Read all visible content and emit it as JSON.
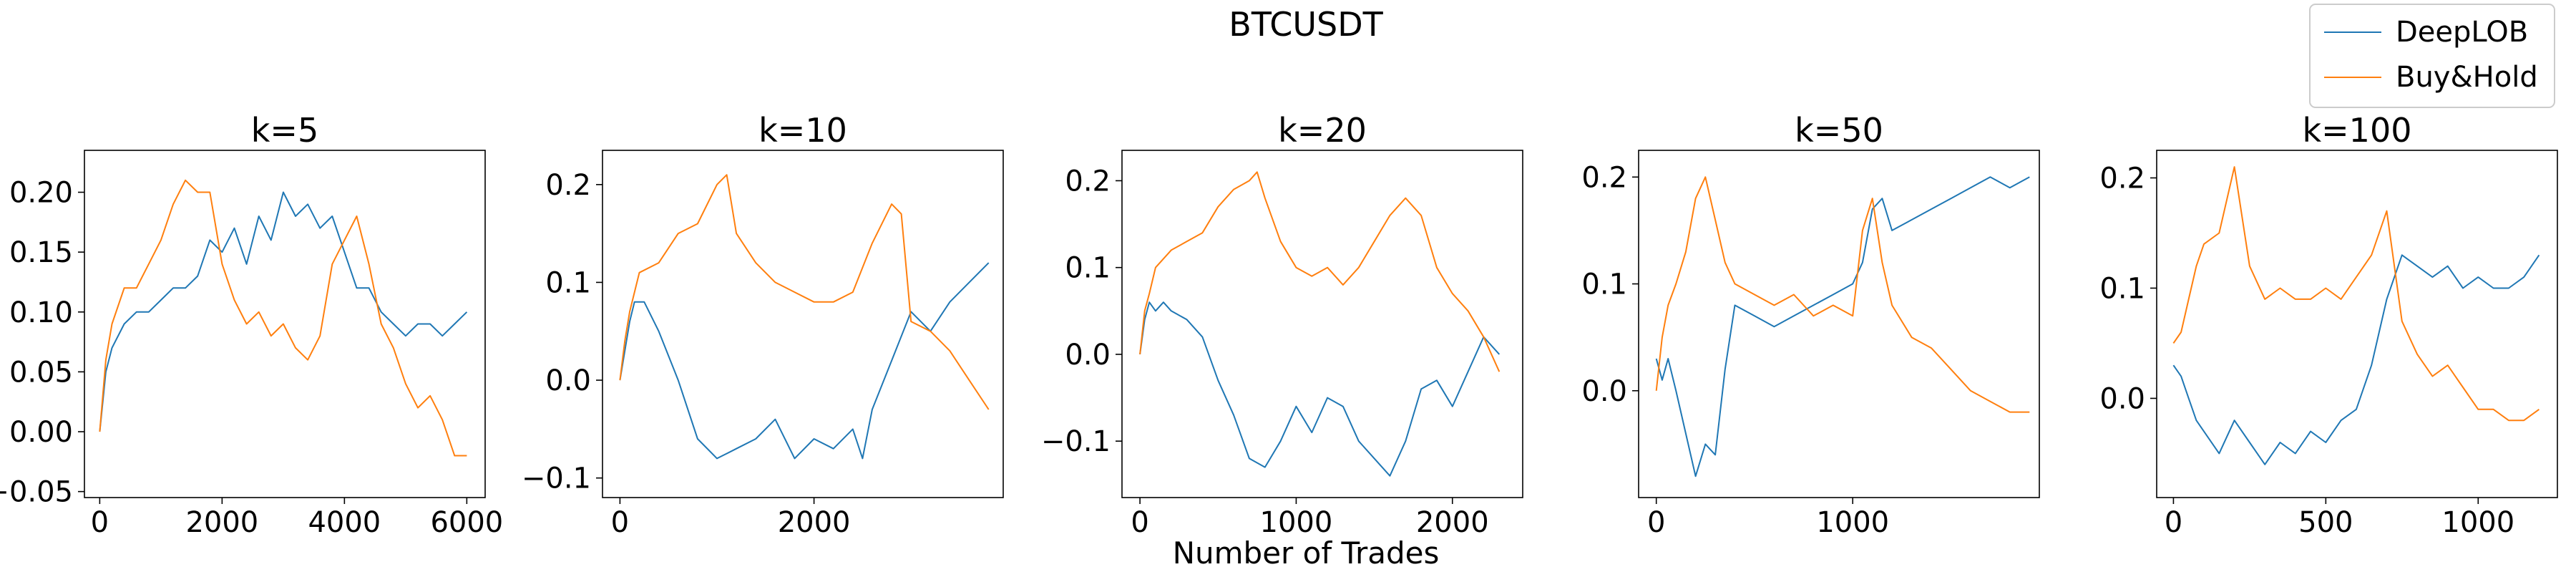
{
  "figure": {
    "title": "BTCUSDT",
    "xlabel": "Number of Trades"
  },
  "legend": {
    "placement": "top-right",
    "items": [
      {
        "label": "DeepLOB",
        "color": "#1f77b4"
      },
      {
        "label": "Buy&Hold",
        "color": "#ff7f0e"
      }
    ]
  },
  "chart_data": [
    {
      "type": "line",
      "title": "k=5",
      "xlim": [
        -250,
        6300
      ],
      "ylim": [
        -0.055,
        0.235
      ],
      "xticks": [
        0,
        2000,
        4000,
        6000
      ],
      "xtick_labels": [
        "0",
        "2000",
        "4000",
        "6000"
      ],
      "yticks": [
        -0.05,
        0.0,
        0.05,
        0.1,
        0.15,
        0.2
      ],
      "ytick_labels": [
        "−0.05",
        "0.00",
        "0.05",
        "0.10",
        "0.15",
        "0.20"
      ],
      "series": [
        {
          "name": "DeepLOB",
          "color": "#1f77b4",
          "x": [
            0,
            100,
            200,
            400,
            600,
            800,
            1000,
            1200,
            1400,
            1600,
            1800,
            2000,
            2200,
            2400,
            2600,
            2800,
            3000,
            3200,
            3400,
            3600,
            3800,
            4000,
            4200,
            4400,
            4600,
            4800,
            5000,
            5200,
            5400,
            5600,
            5800,
            6000
          ],
          "y": [
            0.0,
            0.05,
            0.07,
            0.09,
            0.1,
            0.1,
            0.11,
            0.12,
            0.12,
            0.13,
            0.16,
            0.15,
            0.17,
            0.14,
            0.18,
            0.16,
            0.2,
            0.18,
            0.19,
            0.17,
            0.18,
            0.15,
            0.12,
            0.12,
            0.1,
            0.09,
            0.08,
            0.09,
            0.09,
            0.08,
            0.09,
            0.1
          ]
        },
        {
          "name": "Buy&Hold",
          "color": "#ff7f0e",
          "x": [
            0,
            100,
            200,
            400,
            600,
            800,
            1000,
            1200,
            1400,
            1600,
            1800,
            2000,
            2200,
            2400,
            2600,
            2800,
            3000,
            3200,
            3400,
            3600,
            3800,
            4000,
            4200,
            4400,
            4600,
            4800,
            5000,
            5200,
            5400,
            5600,
            5800,
            6000
          ],
          "y": [
            0.0,
            0.06,
            0.09,
            0.12,
            0.12,
            0.14,
            0.16,
            0.19,
            0.21,
            0.2,
            0.2,
            0.14,
            0.11,
            0.09,
            0.1,
            0.08,
            0.09,
            0.07,
            0.06,
            0.08,
            0.14,
            0.16,
            0.18,
            0.14,
            0.09,
            0.07,
            0.04,
            0.02,
            0.03,
            0.01,
            -0.02,
            -0.02
          ]
        }
      ]
    },
    {
      "type": "line",
      "title": "k=10",
      "xlim": [
        -180,
        3950
      ],
      "ylim": [
        -0.12,
        0.235
      ],
      "xticks": [
        0,
        2000
      ],
      "xtick_labels": [
        "0",
        "2000"
      ],
      "yticks": [
        -0.1,
        0.0,
        0.1,
        0.2
      ],
      "ytick_labels": [
        "−0.1",
        "0.0",
        "0.1",
        "0.2"
      ],
      "series": [
        {
          "name": "DeepLOB",
          "color": "#1f77b4",
          "x": [
            0,
            50,
            100,
            150,
            250,
            400,
            600,
            800,
            1000,
            1200,
            1400,
            1600,
            1800,
            2000,
            2200,
            2400,
            2500,
            2600,
            2800,
            3000,
            3200,
            3400,
            3600,
            3800
          ],
          "y": [
            0.0,
            0.03,
            0.06,
            0.08,
            0.08,
            0.05,
            0.0,
            -0.06,
            -0.08,
            -0.07,
            -0.06,
            -0.04,
            -0.08,
            -0.06,
            -0.07,
            -0.05,
            -0.08,
            -0.03,
            0.02,
            0.07,
            0.05,
            0.08,
            0.1,
            0.12
          ]
        },
        {
          "name": "Buy&Hold",
          "color": "#ff7f0e",
          "x": [
            0,
            50,
            100,
            200,
            400,
            600,
            800,
            1000,
            1100,
            1200,
            1400,
            1600,
            1800,
            2000,
            2200,
            2400,
            2600,
            2800,
            2900,
            3000,
            3200,
            3400,
            3600,
            3800
          ],
          "y": [
            0.0,
            0.04,
            0.07,
            0.11,
            0.12,
            0.15,
            0.16,
            0.2,
            0.21,
            0.15,
            0.12,
            0.1,
            0.09,
            0.08,
            0.08,
            0.09,
            0.14,
            0.18,
            0.17,
            0.06,
            0.05,
            0.03,
            0.0,
            -0.03
          ]
        }
      ]
    },
    {
      "type": "line",
      "title": "k=20",
      "xlim": [
        -115,
        2450
      ],
      "ylim": [
        -0.165,
        0.235
      ],
      "xticks": [
        0,
        1000,
        2000
      ],
      "xtick_labels": [
        "0",
        "1000",
        "2000"
      ],
      "yticks": [
        -0.1,
        0.0,
        0.1,
        0.2
      ],
      "ytick_labels": [
        "−0.1",
        "0.0",
        "0.1",
        "0.2"
      ],
      "series": [
        {
          "name": "DeepLOB",
          "color": "#1f77b4",
          "x": [
            0,
            30,
            60,
            100,
            150,
            200,
            300,
            400,
            500,
            600,
            700,
            800,
            900,
            1000,
            1100,
            1200,
            1300,
            1400,
            1500,
            1600,
            1700,
            1800,
            1900,
            2000,
            2100,
            2200,
            2300
          ],
          "y": [
            0.0,
            0.04,
            0.06,
            0.05,
            0.06,
            0.05,
            0.04,
            0.02,
            -0.03,
            -0.07,
            -0.12,
            -0.13,
            -0.1,
            -0.06,
            -0.09,
            -0.05,
            -0.06,
            -0.1,
            -0.12,
            -0.14,
            -0.1,
            -0.04,
            -0.03,
            -0.06,
            -0.02,
            0.02,
            0.0
          ]
        },
        {
          "name": "Buy&Hold",
          "color": "#ff7f0e",
          "x": [
            0,
            30,
            60,
            100,
            200,
            300,
            400,
            500,
            600,
            700,
            750,
            800,
            900,
            1000,
            1100,
            1200,
            1300,
            1400,
            1500,
            1600,
            1700,
            1800,
            1900,
            2000,
            2100,
            2200,
            2300
          ],
          "y": [
            0.0,
            0.05,
            0.07,
            0.1,
            0.12,
            0.13,
            0.14,
            0.17,
            0.19,
            0.2,
            0.21,
            0.18,
            0.13,
            0.1,
            0.09,
            0.1,
            0.08,
            0.1,
            0.13,
            0.16,
            0.18,
            0.16,
            0.1,
            0.07,
            0.05,
            0.02,
            -0.02
          ]
        }
      ]
    },
    {
      "type": "line",
      "title": "k=50",
      "xlim": [
        -90,
        1950
      ],
      "ylim": [
        -0.1,
        0.225
      ],
      "xticks": [
        0,
        1000
      ],
      "xtick_labels": [
        "0",
        "1000"
      ],
      "yticks": [
        0.0,
        0.1,
        0.2
      ],
      "ytick_labels": [
        "0.0",
        "0.1",
        "0.2"
      ],
      "series": [
        {
          "name": "DeepLOB",
          "color": "#1f77b4",
          "x": [
            0,
            30,
            60,
            100,
            150,
            200,
            250,
            300,
            350,
            400,
            500,
            600,
            700,
            800,
            900,
            1000,
            1050,
            1100,
            1150,
            1200,
            1300,
            1400,
            1500,
            1600,
            1700,
            1800,
            1900
          ],
          "y": [
            0.03,
            0.01,
            0.03,
            0.0,
            -0.04,
            -0.08,
            -0.05,
            -0.06,
            0.02,
            0.08,
            0.07,
            0.06,
            0.07,
            0.08,
            0.09,
            0.1,
            0.12,
            0.17,
            0.18,
            0.15,
            0.16,
            0.17,
            0.18,
            0.19,
            0.2,
            0.19,
            0.2
          ]
        },
        {
          "name": "Buy&Hold",
          "color": "#ff7f0e",
          "x": [
            0,
            30,
            60,
            100,
            150,
            200,
            250,
            300,
            350,
            400,
            500,
            600,
            700,
            800,
            900,
            1000,
            1050,
            1100,
            1150,
            1200,
            1300,
            1400,
            1500,
            1600,
            1700,
            1800,
            1900
          ],
          "y": [
            0.0,
            0.05,
            0.08,
            0.1,
            0.13,
            0.18,
            0.2,
            0.16,
            0.12,
            0.1,
            0.09,
            0.08,
            0.09,
            0.07,
            0.08,
            0.07,
            0.15,
            0.18,
            0.12,
            0.08,
            0.05,
            0.04,
            0.02,
            0.0,
            -0.01,
            -0.02,
            -0.02
          ]
        }
      ]
    },
    {
      "type": "line",
      "title": "k=100",
      "xlim": [
        -55,
        1260
      ],
      "ylim": [
        -0.09,
        0.225
      ],
      "xticks": [
        0,
        500,
        1000
      ],
      "xtick_labels": [
        "0",
        "500",
        "1000"
      ],
      "yticks": [
        0.0,
        0.1,
        0.2
      ],
      "ytick_labels": [
        "0.0",
        "0.1",
        "0.2"
      ],
      "series": [
        {
          "name": "DeepLOB",
          "color": "#1f77b4",
          "x": [
            0,
            25,
            50,
            75,
            100,
            150,
            200,
            250,
            300,
            350,
            400,
            450,
            500,
            550,
            600,
            650,
            700,
            750,
            800,
            850,
            900,
            950,
            1000,
            1050,
            1100,
            1150,
            1200
          ],
          "y": [
            0.03,
            0.02,
            0.0,
            -0.02,
            -0.03,
            -0.05,
            -0.02,
            -0.04,
            -0.06,
            -0.04,
            -0.05,
            -0.03,
            -0.04,
            -0.02,
            -0.01,
            0.03,
            0.09,
            0.13,
            0.12,
            0.11,
            0.12,
            0.1,
            0.11,
            0.1,
            0.1,
            0.11,
            0.13
          ]
        },
        {
          "name": "Buy&Hold",
          "color": "#ff7f0e",
          "x": [
            0,
            25,
            50,
            75,
            100,
            150,
            200,
            250,
            300,
            350,
            400,
            450,
            500,
            550,
            600,
            650,
            700,
            750,
            800,
            850,
            900,
            950,
            1000,
            1050,
            1100,
            1150,
            1200
          ],
          "y": [
            0.05,
            0.06,
            0.09,
            0.12,
            0.14,
            0.15,
            0.21,
            0.12,
            0.09,
            0.1,
            0.09,
            0.09,
            0.1,
            0.09,
            0.11,
            0.13,
            0.17,
            0.07,
            0.04,
            0.02,
            0.03,
            0.01,
            -0.01,
            -0.01,
            -0.02,
            -0.02,
            -0.01
          ]
        }
      ]
    }
  ]
}
